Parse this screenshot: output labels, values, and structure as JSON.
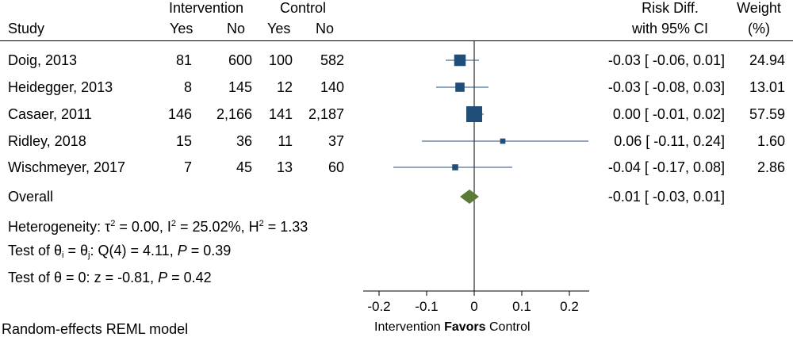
{
  "headers": {
    "group_intervention": "Intervention",
    "group_control": "Control",
    "study": "Study",
    "yes": "Yes",
    "no": "No",
    "risk_diff_line1": "Risk Diff.",
    "risk_diff_line2": "with 95% CI",
    "weight_line1": "Weight",
    "weight_line2": "(%)"
  },
  "chart_data": {
    "type": "forest",
    "measure": "Risk Diff.",
    "studies": [
      {
        "name": "Doig, 2013",
        "int_yes": "81",
        "int_no": "600",
        "ctl_yes": "100",
        "ctl_no": "582",
        "rd": -0.03,
        "lo": -0.06,
        "hi": 0.01,
        "ci_text": "-0.03 [ -0.06,  0.01]",
        "weight": 24.94,
        "weight_text": "24.94"
      },
      {
        "name": "Heidegger, 2013",
        "int_yes": "8",
        "int_no": "145",
        "ctl_yes": "12",
        "ctl_no": "140",
        "rd": -0.03,
        "lo": -0.08,
        "hi": 0.03,
        "ci_text": "-0.03 [ -0.08,  0.03]",
        "weight": 13.01,
        "weight_text": "13.01"
      },
      {
        "name": "Casaer, 2011",
        "int_yes": "146",
        "int_no": "2,166",
        "ctl_yes": "141",
        "ctl_no": "2,187",
        "rd": 0.0,
        "lo": -0.01,
        "hi": 0.02,
        "ci_text": "0.00 [ -0.01,  0.02]",
        "weight": 57.59,
        "weight_text": "57.59"
      },
      {
        "name": "Ridley, 2018",
        "int_yes": "15",
        "int_no": "36",
        "ctl_yes": "11",
        "ctl_no": "37",
        "rd": 0.06,
        "lo": -0.11,
        "hi": 0.24,
        "ci_text": "0.06 [ -0.11,  0.24]",
        "weight": 1.6,
        "weight_text": "1.60"
      },
      {
        "name": "Wischmeyer, 2017",
        "int_yes": "7",
        "int_no": "45",
        "ctl_yes": "13",
        "ctl_no": "60",
        "rd": -0.04,
        "lo": -0.17,
        "hi": 0.08,
        "ci_text": "-0.04 [ -0.17,  0.08]",
        "weight": 2.86,
        "weight_text": "2.86"
      }
    ],
    "overall": {
      "label": "Overall",
      "rd": -0.01,
      "lo": -0.03,
      "hi": 0.01,
      "ci_text": "-0.01 [ -0.03,  0.01]"
    },
    "xlim": [
      -0.2,
      0.2
    ],
    "xticks": [
      -0.2,
      -0.1,
      0,
      0.1,
      0.2
    ],
    "xtick_labels": [
      "-0.2",
      "-0.1",
      "0",
      "0.1",
      "0.2"
    ],
    "xlabel_left": "Intervention",
    "xlabel_mid": "Favors",
    "xlabel_right": "Control",
    "colors": {
      "box": "#1f4e79",
      "ci": "#1f4e79",
      "diamond": "#5b7a36",
      "axis": "#000000"
    },
    "grid": false
  },
  "stats": {
    "het_prefix": "Heterogeneity: ",
    "tau_sym": "τ",
    "tau_sup": "2",
    "tau_rest": " = 0.00, I",
    "i_sup": "2",
    "i_rest": " = 25.02%, H",
    "h_sup": "2",
    "h_rest": " = 1.33",
    "test1_prefix": "Test of ",
    "theta": "θ",
    "sub_i": "i",
    "eq": " = ",
    "sub_j": "j",
    "test1_rest": ": Q(4) = 4.11, ",
    "p_label": "P",
    "test1_p": " = 0.39",
    "test2_text": "Test of θ = 0: z = -0.81, ",
    "test2_p": " = 0.42"
  },
  "footer": {
    "model": "Random-effects REML model"
  }
}
